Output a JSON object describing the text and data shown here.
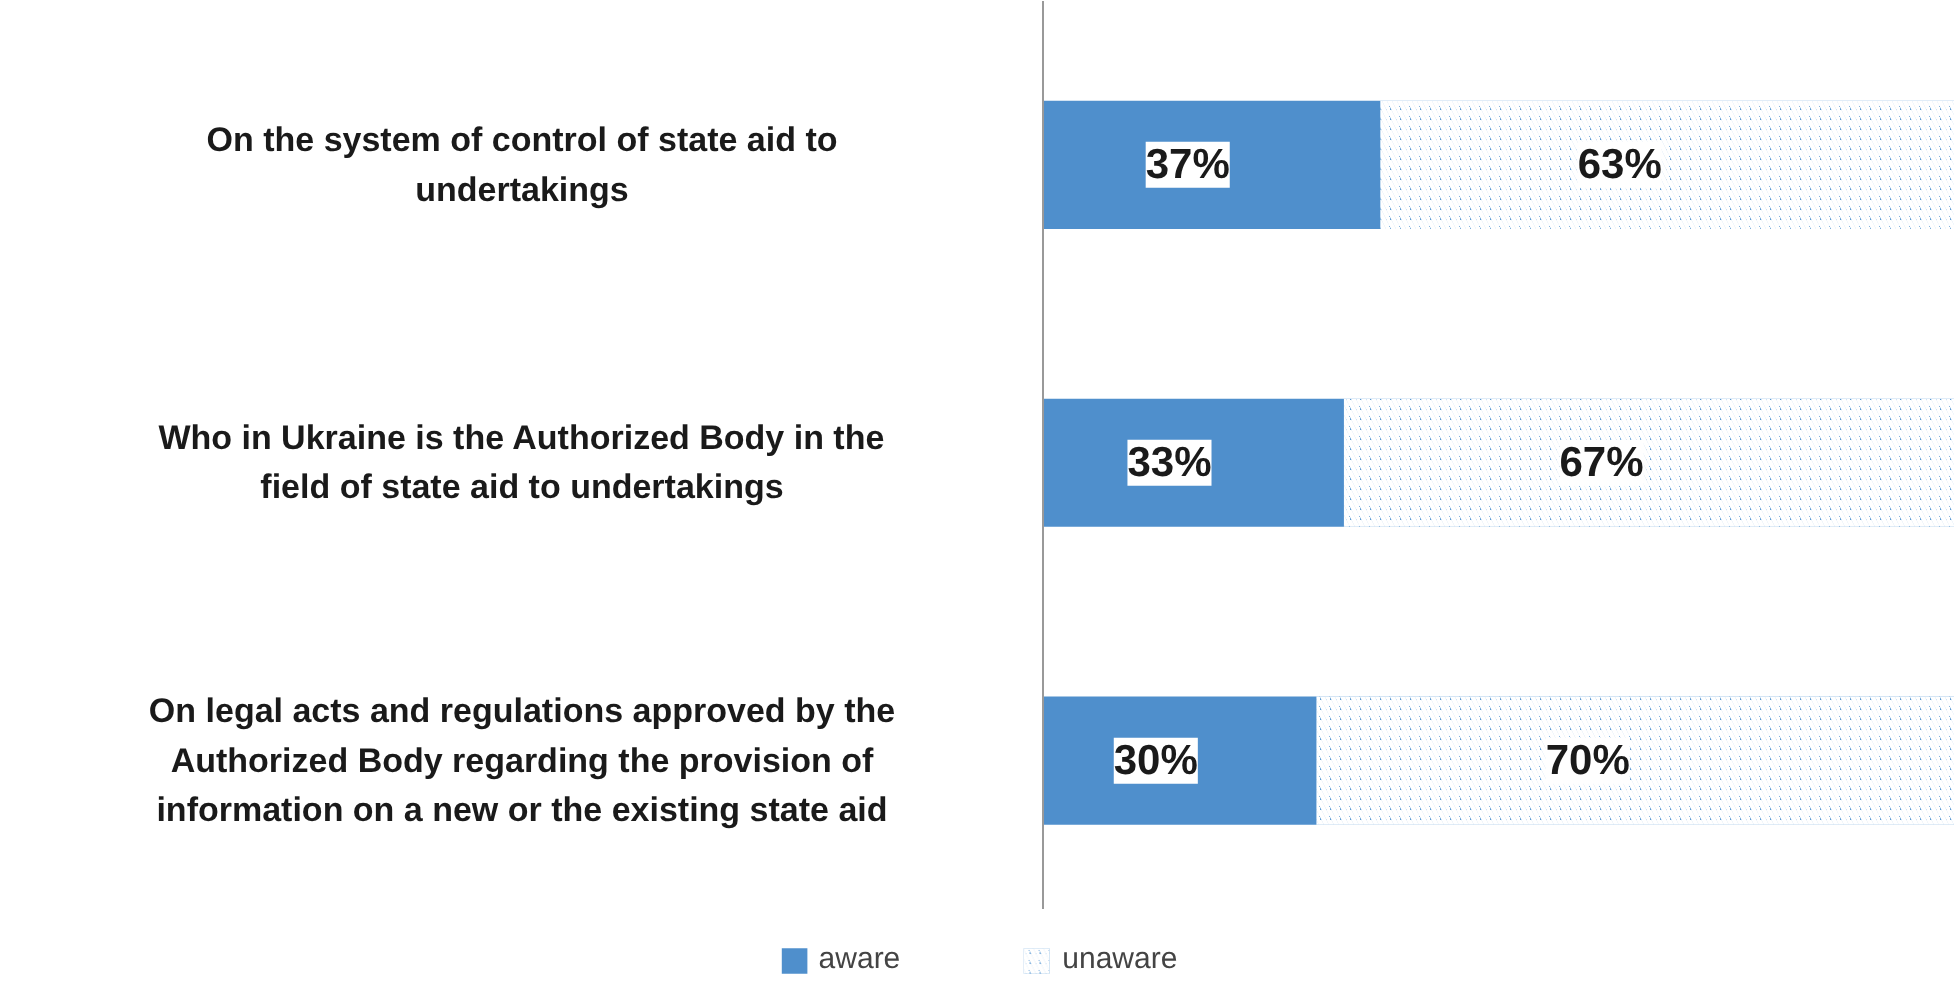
{
  "chart_data": {
    "type": "bar",
    "orientation": "horizontal",
    "stacked": true,
    "categories": [
      "On the system of control of state aid to undertakings",
      "Who in Ukraine is the Authorized Body in the field of state aid to undertakings",
      "On legal acts and regulations approved by the Authorized Body regarding the provision of information on a new or the existing state aid"
    ],
    "series": [
      {
        "name": "aware",
        "color": "#4f8fcc",
        "values": [
          37,
          33,
          30
        ],
        "value_labels": [
          "37%",
          "33%",
          "30%"
        ]
      },
      {
        "name": "unaware",
        "color": "#5b9bd5",
        "values": [
          63,
          67,
          70
        ],
        "value_labels": [
          "63%",
          "67%",
          "70%"
        ]
      }
    ],
    "xlim": [
      0,
      100
    ],
    "tick_labels": "y",
    "grid": false,
    "legend": "bottom"
  }
}
